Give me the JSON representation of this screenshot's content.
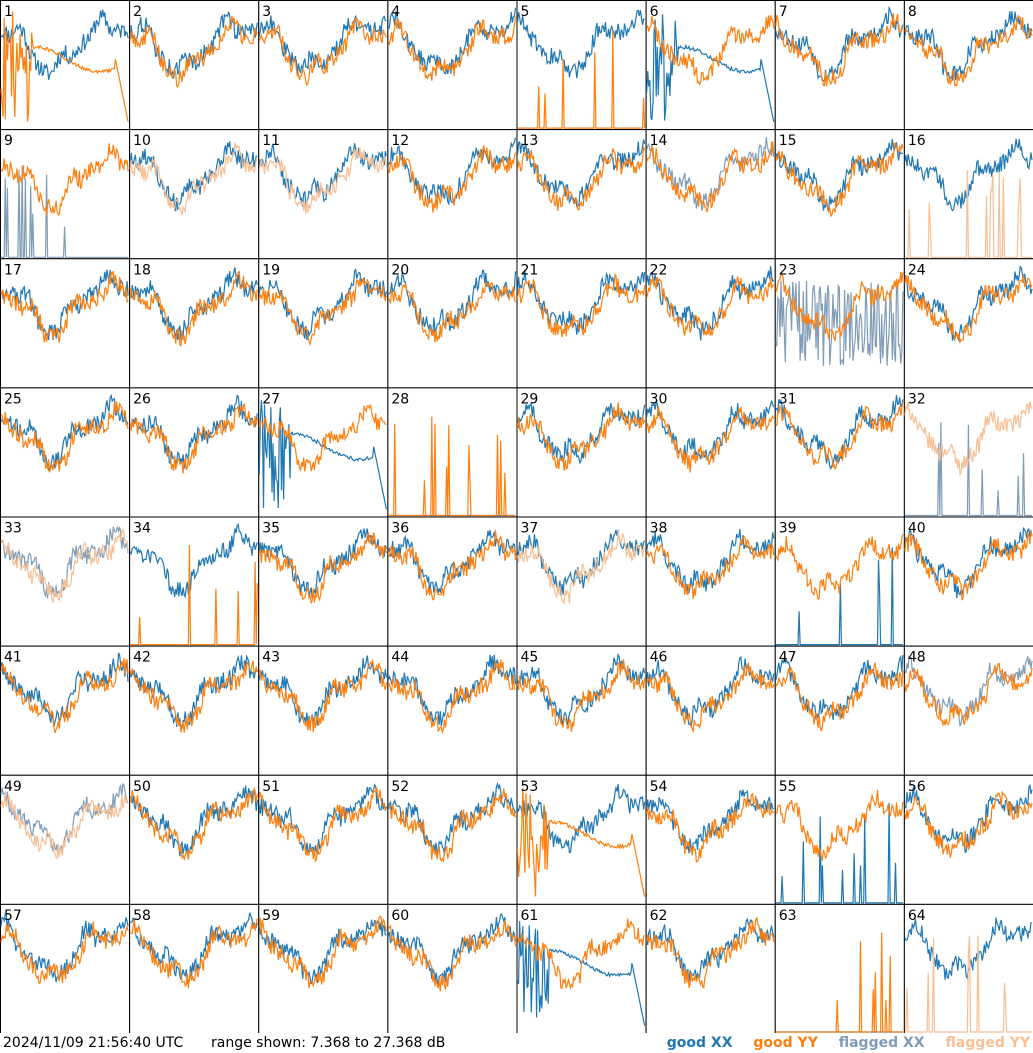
{
  "timestamp": "2024/11/09 21:56:40 UTC",
  "range_text": "range shown: 7.368 to 27.368 dB",
  "legend": [
    {
      "label": "good XX",
      "color": "#1f77b4"
    },
    {
      "label": "good YY",
      "color": "#ff7f0e"
    },
    {
      "label": "flagged XX",
      "color": "#7f9db8"
    },
    {
      "label": "flagged YY",
      "color": "#f7bf94"
    }
  ],
  "chart_data": {
    "type": "line",
    "grid": {
      "rows": 8,
      "cols": 8
    },
    "ylim": [
      7.368,
      27.368
    ],
    "yunit": "dB",
    "panels": [
      {
        "label": "1",
        "xx": "normal",
        "yy": "broken",
        "flag": false
      },
      {
        "label": "2",
        "xx": "normal",
        "yy": "normal",
        "flag": false
      },
      {
        "label": "3",
        "xx": "normal",
        "yy": "normal",
        "flag": false
      },
      {
        "label": "4",
        "xx": "normal",
        "yy": "normal",
        "flag": false
      },
      {
        "label": "5",
        "xx": "normal",
        "yy": "spikes",
        "flag": false
      },
      {
        "label": "6",
        "xx": "broken",
        "yy": "normal",
        "flag": false
      },
      {
        "label": "7",
        "xx": "normal",
        "yy": "normal",
        "flag": false
      },
      {
        "label": "8",
        "xx": "normal",
        "yy": "normal",
        "flag": false
      },
      {
        "label": "9",
        "xx": "spikes",
        "yy": "normal",
        "flag": "xx"
      },
      {
        "label": "10",
        "xx": "normal",
        "yy": "normal",
        "flag": "yy"
      },
      {
        "label": "11",
        "xx": "normal",
        "yy": "normal",
        "flag": "yy"
      },
      {
        "label": "12",
        "xx": "normal",
        "yy": "normal",
        "flag": false
      },
      {
        "label": "13",
        "xx": "normal",
        "yy": "normal",
        "flag": false
      },
      {
        "label": "14",
        "xx": "normal",
        "yy": "normal",
        "flag": "xx"
      },
      {
        "label": "15",
        "xx": "normal",
        "yy": "normal",
        "flag": false
      },
      {
        "label": "16",
        "xx": "normal",
        "yy": "spikes",
        "flag": "yy"
      },
      {
        "label": "17",
        "xx": "normal",
        "yy": "normal",
        "flag": false
      },
      {
        "label": "18",
        "xx": "normal",
        "yy": "normal",
        "flag": false
      },
      {
        "label": "19",
        "xx": "normal",
        "yy": "normal",
        "flag": false
      },
      {
        "label": "20",
        "xx": "normal",
        "yy": "normal",
        "flag": false
      },
      {
        "label": "21",
        "xx": "normal",
        "yy": "normal",
        "flag": false
      },
      {
        "label": "22",
        "xx": "normal",
        "yy": "normal",
        "flag": false
      },
      {
        "label": "23",
        "xx": "noisy",
        "yy": "normal",
        "flag": "xx"
      },
      {
        "label": "24",
        "xx": "normal",
        "yy": "normal",
        "flag": false
      },
      {
        "label": "25",
        "xx": "normal",
        "yy": "normal",
        "flag": false
      },
      {
        "label": "26",
        "xx": "normal",
        "yy": "normal",
        "flag": false
      },
      {
        "label": "27",
        "xx": "broken",
        "yy": "normal",
        "flag": false
      },
      {
        "label": "28",
        "xx": "flat",
        "yy": "spikes",
        "flag": false
      },
      {
        "label": "29",
        "xx": "normal",
        "yy": "normal",
        "flag": false
      },
      {
        "label": "30",
        "xx": "normal",
        "yy": "normal",
        "flag": false
      },
      {
        "label": "31",
        "xx": "normal",
        "yy": "normal",
        "flag": false
      },
      {
        "label": "32",
        "xx": "spikes",
        "yy": "normal",
        "flag": "both"
      },
      {
        "label": "33",
        "xx": "normal",
        "yy": "normal",
        "flag": "both"
      },
      {
        "label": "34",
        "xx": "normal",
        "yy": "spikes",
        "flag": false
      },
      {
        "label": "35",
        "xx": "normal",
        "yy": "normal",
        "flag": false
      },
      {
        "label": "36",
        "xx": "normal",
        "yy": "normal",
        "flag": false
      },
      {
        "label": "37",
        "xx": "normal",
        "yy": "normal",
        "flag": "yy"
      },
      {
        "label": "38",
        "xx": "normal",
        "yy": "normal",
        "flag": false
      },
      {
        "label": "39",
        "xx": "spikes",
        "yy": "normal",
        "flag": false
      },
      {
        "label": "40",
        "xx": "normal",
        "yy": "normal",
        "flag": false
      },
      {
        "label": "41",
        "xx": "normal",
        "yy": "normal",
        "flag": false
      },
      {
        "label": "42",
        "xx": "normal",
        "yy": "normal",
        "flag": false
      },
      {
        "label": "43",
        "xx": "normal",
        "yy": "normal",
        "flag": false
      },
      {
        "label": "44",
        "xx": "normal",
        "yy": "normal",
        "flag": false
      },
      {
        "label": "45",
        "xx": "normal",
        "yy": "normal",
        "flag": false
      },
      {
        "label": "46",
        "xx": "normal",
        "yy": "normal",
        "flag": false
      },
      {
        "label": "47",
        "xx": "normal",
        "yy": "normal",
        "flag": false
      },
      {
        "label": "48",
        "xx": "normal",
        "yy": "normal",
        "flag": "xx"
      },
      {
        "label": "49",
        "xx": "normal",
        "yy": "normal",
        "flag": "both"
      },
      {
        "label": "50",
        "xx": "normal",
        "yy": "normal",
        "flag": false
      },
      {
        "label": "51",
        "xx": "normal",
        "yy": "normal",
        "flag": false
      },
      {
        "label": "52",
        "xx": "normal",
        "yy": "normal",
        "flag": false
      },
      {
        "label": "53",
        "xx": "normal",
        "yy": "broken",
        "flag": false
      },
      {
        "label": "54",
        "xx": "normal",
        "yy": "normal",
        "flag": false
      },
      {
        "label": "55",
        "xx": "spikes",
        "yy": "normal",
        "flag": false
      },
      {
        "label": "56",
        "xx": "normal",
        "yy": "normal",
        "flag": false
      },
      {
        "label": "57",
        "xx": "normal",
        "yy": "normal",
        "flag": false
      },
      {
        "label": "58",
        "xx": "normal",
        "yy": "normal",
        "flag": false
      },
      {
        "label": "59",
        "xx": "normal",
        "yy": "normal",
        "flag": false
      },
      {
        "label": "60",
        "xx": "normal",
        "yy": "normal",
        "flag": false
      },
      {
        "label": "61",
        "xx": "broken",
        "yy": "normal",
        "flag": false
      },
      {
        "label": "62",
        "xx": "normal",
        "yy": "normal",
        "flag": false
      },
      {
        "label": "63",
        "xx": "flat",
        "yy": "spikes",
        "flag": false
      },
      {
        "label": "64",
        "xx": "normal",
        "yy": "spikes",
        "flag": "yy"
      }
    ]
  }
}
